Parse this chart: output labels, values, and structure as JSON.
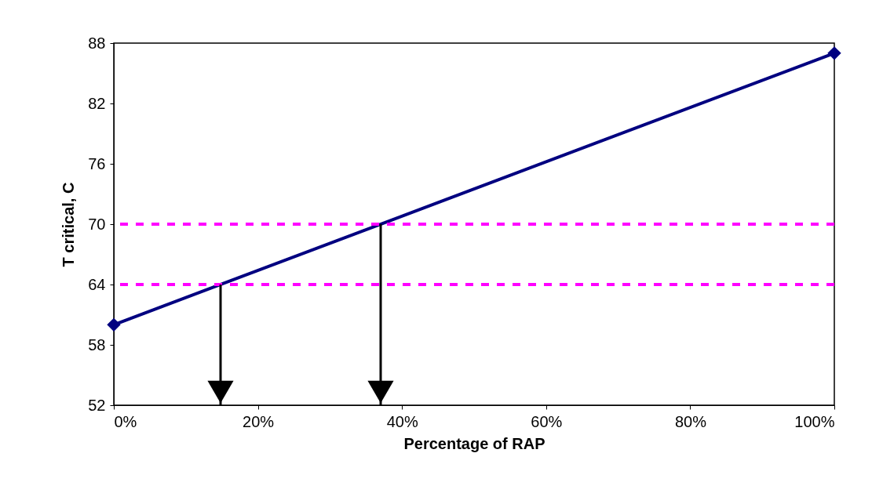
{
  "chart_data": {
    "type": "line",
    "xlabel": "Percentage of RAP",
    "ylabel": "T critical, C",
    "x": [
      0,
      100
    ],
    "series": [
      {
        "color": "#000080",
        "values": [
          60,
          87
        ]
      }
    ],
    "xlim": [
      0,
      100
    ],
    "xticks": [
      {
        "value": 0,
        "label": "0%"
      },
      {
        "value": 20,
        "label": "20%"
      },
      {
        "value": 40,
        "label": "40%"
      },
      {
        "value": 60,
        "label": "60%"
      },
      {
        "value": 80,
        "label": "80%"
      },
      {
        "value": 100,
        "label": "100%"
      }
    ],
    "ylim": [
      52,
      88
    ],
    "yticks": [
      52,
      58,
      64,
      70,
      76,
      82,
      88
    ],
    "ref_lines": [
      {
        "axis": "y",
        "value": 64,
        "color": "#ff00ff",
        "line_style": "dotted"
      },
      {
        "axis": "y",
        "value": 70,
        "color": "#ff00ff",
        "line_style": "dotted"
      }
    ],
    "marker": "diamond",
    "line_style": "solid"
  }
}
